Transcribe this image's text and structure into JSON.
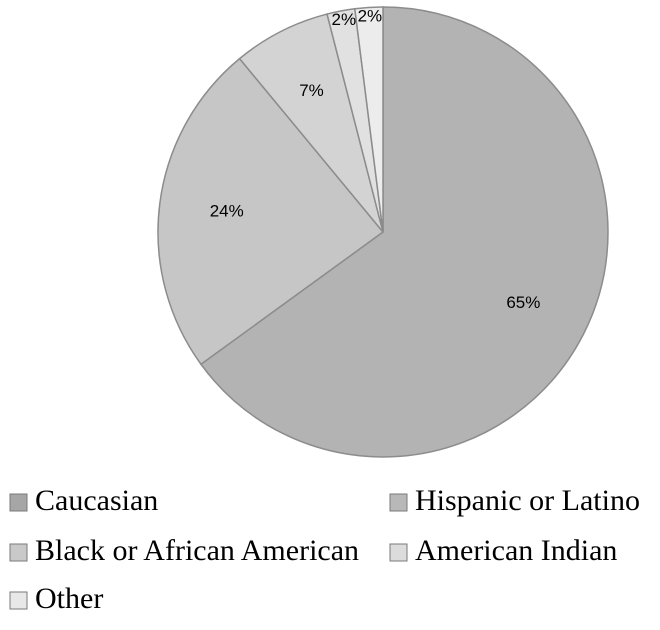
{
  "chart_data": {
    "type": "pie",
    "categories": [
      "Caucasian",
      "Hispanic or Latino",
      "Black or African American",
      "American Indian",
      "Other"
    ],
    "values": [
      65,
      24,
      7,
      2,
      2
    ],
    "labels": [
      "65%",
      "24%",
      "7%",
      "2%",
      "2%"
    ],
    "colors": [
      "#b3b3b3",
      "#c6c6c6",
      "#d3d3d3",
      "#e1e1e1",
      "#ececec"
    ],
    "legend_colors": [
      "#a6a6a6",
      "#b8b8b8",
      "#c9c9c9",
      "#dcdcdc",
      "#e8e8e8"
    ],
    "start_angle_deg": 0,
    "direction": "clockwise",
    "legend_position": "bottom",
    "title": ""
  }
}
